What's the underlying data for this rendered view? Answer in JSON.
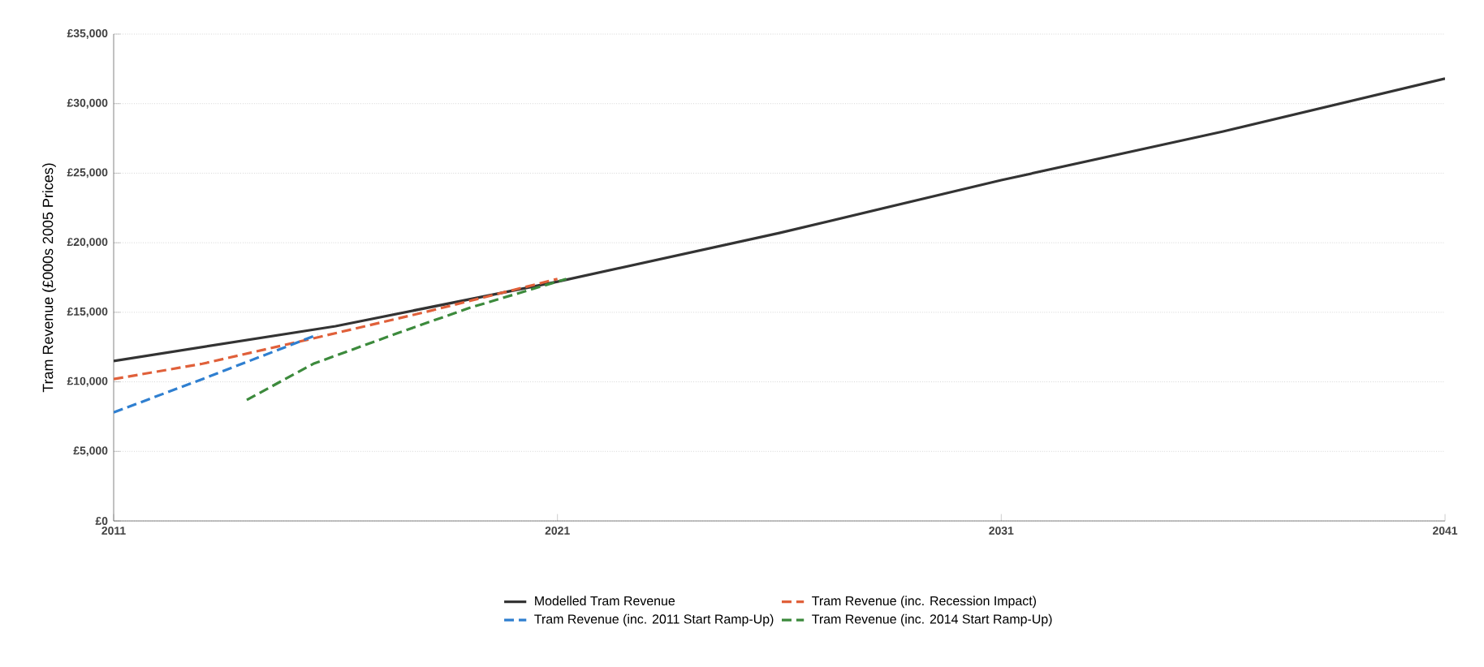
{
  "chart_data": {
    "type": "line",
    "ylabel": "Tram Revenue (£000s 2005 Prices)",
    "xlim": [
      2011,
      2041
    ],
    "xticks": [
      2011,
      2021,
      2031,
      2041
    ],
    "ylim": [
      0,
      35000
    ],
    "yticks": [
      {
        "value": 0,
        "label": "£0"
      },
      {
        "value": 5000,
        "label": "£5,000"
      },
      {
        "value": 10000,
        "label": "£10,000"
      },
      {
        "value": 15000,
        "label": "£15,000"
      },
      {
        "value": 20000,
        "label": "£20,000"
      },
      {
        "value": 25000,
        "label": "£25,000"
      },
      {
        "value": 30000,
        "label": "£30,000"
      },
      {
        "value": 35000,
        "label": "£35,000"
      }
    ],
    "grid": "y",
    "legend": "bottom",
    "series": [
      {
        "name": "Modelled Tram Revenue",
        "color": "#333333",
        "line_style": "solid",
        "x": [
          2011,
          2016,
          2021,
          2026,
          2031,
          2036,
          2041
        ],
        "values": [
          11500,
          14000,
          17200,
          20700,
          24500,
          28000,
          31800
        ]
      },
      {
        "name": "Tram Revenue (inc. Recession Impact)",
        "color": "#e0603a",
        "line_style": "dashed",
        "x": [
          2011,
          2013,
          2015.6,
          2018,
          2021
        ],
        "values": [
          10200,
          11300,
          13200,
          15000,
          17400
        ]
      },
      {
        "name": "Tram Revenue (inc. 2011 Start Ramp-Up)",
        "color": "#2f7fd0",
        "line_style": "dashed",
        "x": [
          2011,
          2013,
          2015.6
        ],
        "values": [
          7800,
          10200,
          13400
        ]
      },
      {
        "name": "Tram Revenue (inc. 2014 Start Ramp-Up)",
        "color": "#3c8a3c",
        "line_style": "dashed",
        "x": [
          2014,
          2015.5,
          2017.4,
          2019,
          2021.2
        ],
        "values": [
          8700,
          11300,
          13500,
          15300,
          17400
        ]
      }
    ]
  }
}
